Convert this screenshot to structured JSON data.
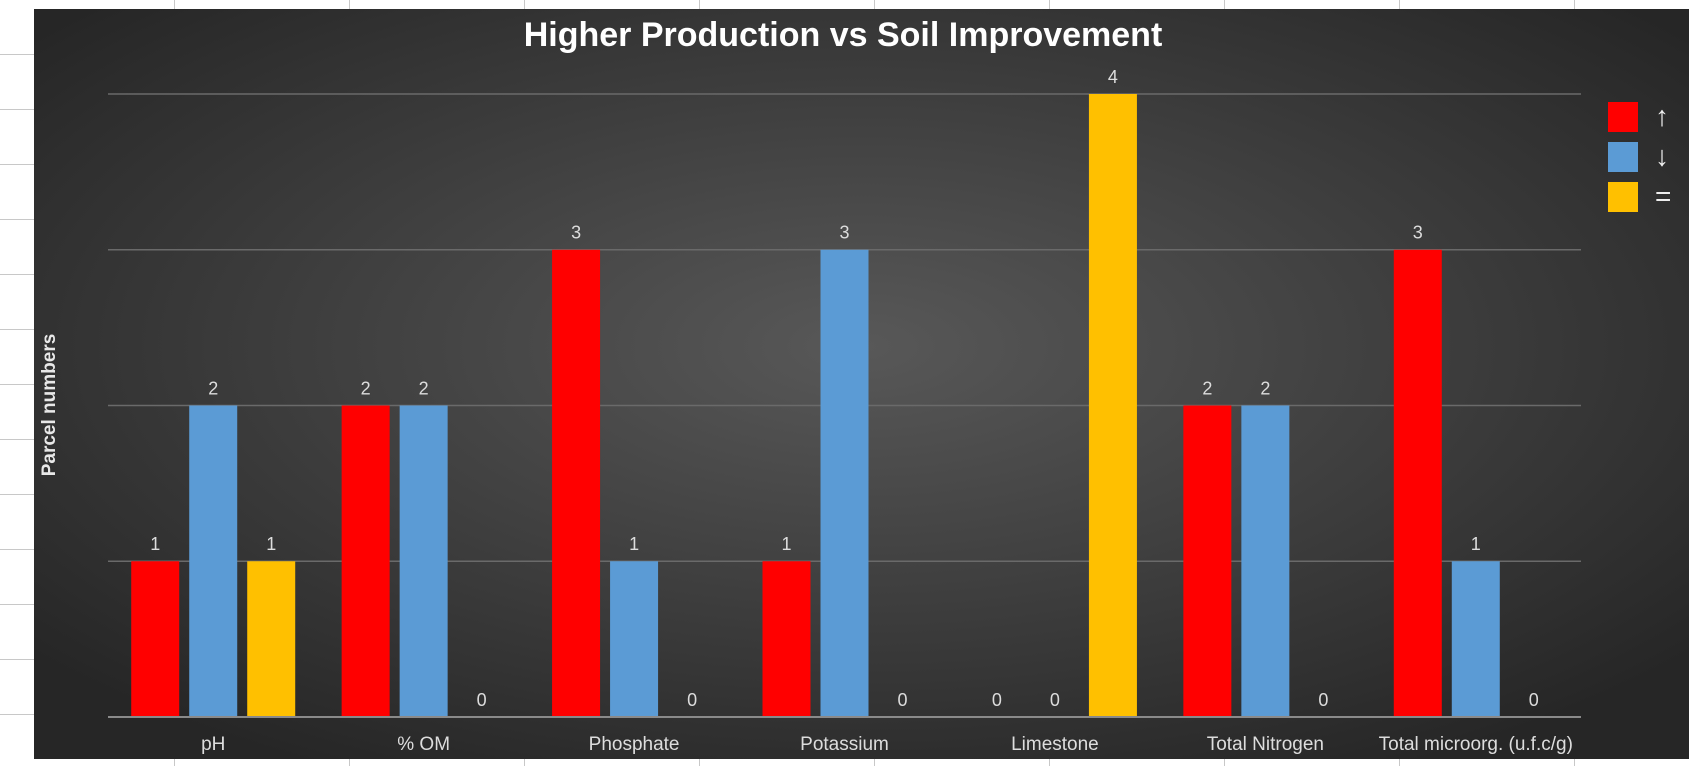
{
  "chart_data": {
    "type": "bar",
    "title": "Higher Production vs Soil Improvement",
    "y_label": "Parcel numbers",
    "categories": [
      "pH",
      "% OM",
      "Phosphate",
      "Potassium",
      "Limestone",
      "Total Nitrogen",
      "Total microorg. (u.f.c/g)"
    ],
    "series": [
      {
        "name": "↑",
        "color": "#ff0000",
        "values": [
          1,
          2,
          3,
          1,
          0,
          2,
          3
        ]
      },
      {
        "name": "↓",
        "color": "#5b9bd5",
        "values": [
          2,
          2,
          1,
          3,
          0,
          2,
          1
        ]
      },
      {
        "name": "=",
        "color": "#ffc000",
        "values": [
          1,
          0,
          0,
          0,
          4,
          0,
          0
        ]
      }
    ],
    "ylim": [
      0,
      4
    ],
    "yticks": [
      0,
      1,
      2,
      3,
      4
    ],
    "grid": true,
    "legend": "right"
  }
}
